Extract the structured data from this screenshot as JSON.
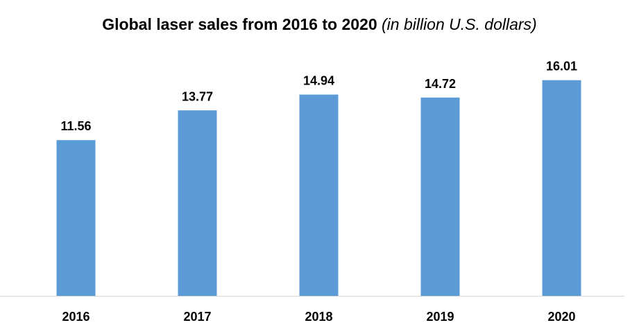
{
  "chart_data": {
    "type": "bar",
    "title": "Global laser sales from 2016 to 2020",
    "subtitle": "(in billion U.S. dollars)",
    "categories": [
      "2016",
      "2017",
      "2018",
      "2019",
      "2020"
    ],
    "values": [
      11.56,
      13.77,
      14.94,
      14.72,
      16.01
    ],
    "value_labels": [
      "11.56",
      "13.77",
      "14.94",
      "14.72",
      "16.01"
    ],
    "xlabel": "",
    "ylabel": "",
    "ylim": [
      0,
      18
    ],
    "grid": false,
    "y_axis_visible": false,
    "bar_color": "#5B9BD5",
    "axis_color": "#D9D9D9"
  }
}
